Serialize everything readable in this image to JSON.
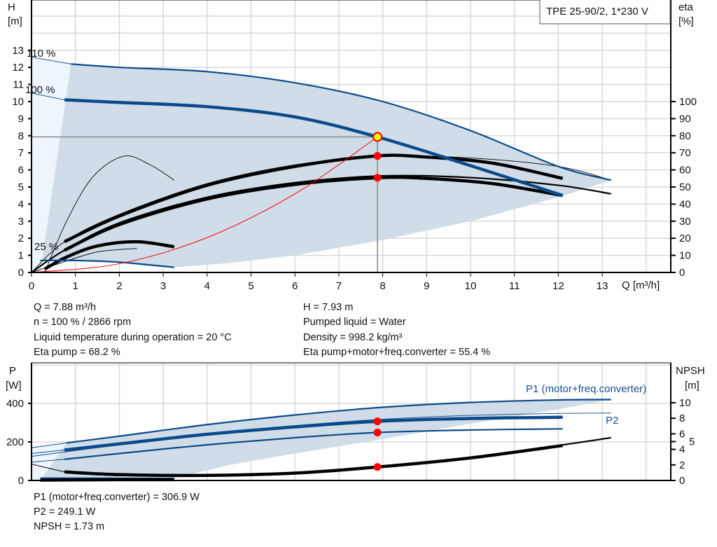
{
  "title_box": "TPE 25-90/2, 1*230 V",
  "chart_data": [
    {
      "type": "line",
      "title": "TPE 25-90/2, 1*230 V",
      "xlabel": "Q [m³/h]",
      "ylabel": [
        "H",
        "[m]"
      ],
      "y2label": [
        "eta",
        "[%]"
      ],
      "xlim": [
        0,
        14.5
      ],
      "ylim": [
        0,
        16
      ],
      "y2lim": [
        0,
        160
      ],
      "xticks": [
        0,
        1,
        2,
        3,
        4,
        5,
        6,
        7,
        8,
        9,
        10,
        11,
        12,
        13
      ],
      "yticks": [
        0,
        1,
        2,
        3,
        4,
        5,
        6,
        7,
        8,
        9,
        10,
        11,
        12,
        13
      ],
      "y2ticks": [
        0,
        10,
        20,
        30,
        40,
        50,
        60,
        70,
        80,
        90,
        100
      ],
      "grid": true,
      "annotations": [
        {
          "text": "110 %",
          "q": 0.0,
          "h": 12.7
        },
        {
          "text": "100 %",
          "q": 0.0,
          "h": 10.6
        },
        {
          "text": "25 %",
          "q": 0.0,
          "h": 1.1
        }
      ],
      "operating_region": {
        "upper": [
          [
            0.9,
            12.2
          ],
          [
            2,
            12.0
          ],
          [
            4,
            11.75
          ],
          [
            6,
            11.1
          ],
          [
            8,
            10.0
          ],
          [
            10,
            8.3
          ],
          [
            12,
            6.2
          ],
          [
            13.2,
            5.4
          ]
        ],
        "lower": [
          [
            13.2,
            5.4
          ],
          [
            12,
            4.4
          ],
          [
            10,
            3.0
          ],
          [
            8,
            1.9
          ],
          [
            6,
            1.0
          ],
          [
            4.5,
            0.55
          ],
          [
            3.25,
            0.3
          ]
        ],
        "min": [
          [
            3.25,
            0.3
          ],
          [
            2,
            0.6
          ],
          [
            1,
            0.7
          ],
          [
            0.2,
            0.7
          ]
        ],
        "left_edge": [
          [
            0.2,
            0.0
          ],
          [
            0.9,
            12.2
          ]
        ]
      },
      "head_curves": [
        {
          "label": "110 %",
          "color": "#0b4a8a",
          "style": "medium",
          "thin_points": [
            [
              0,
              12.6
            ],
            [
              0.9,
              12.2
            ]
          ],
          "points": [
            [
              0.9,
              12.2
            ],
            [
              2,
              12.0
            ],
            [
              4,
              11.75
            ],
            [
              6,
              11.1
            ],
            [
              8,
              10.0
            ],
            [
              10,
              8.3
            ],
            [
              12,
              6.2
            ],
            [
              13.2,
              5.4
            ]
          ]
        },
        {
          "label": "100 %",
          "color": "#0b4a8a",
          "style": "thick",
          "thin_points": [
            [
              0,
              10.5
            ],
            [
              0.75,
              10.1
            ]
          ],
          "points": [
            [
              0.75,
              10.1
            ],
            [
              2,
              9.95
            ],
            [
              4,
              9.7
            ],
            [
              6,
              9.1
            ],
            [
              7.88,
              7.93
            ],
            [
              10,
              6.25
            ],
            [
              12.1,
              4.5
            ]
          ]
        },
        {
          "label": "25 %",
          "color": "#0b4a8a",
          "style": "medium",
          "thin_points": [],
          "points": [
            [
              0.2,
              0.7
            ],
            [
              1,
              0.7
            ],
            [
              2,
              0.6
            ],
            [
              3.25,
              0.3
            ]
          ]
        }
      ],
      "eta_curves": [
        {
          "color": "#000000",
          "style": "thick",
          "points": [
            [
              0.75,
              18
            ],
            [
              2,
              33
            ],
            [
              4,
              51
            ],
            [
              6,
              62
            ],
            [
              7.88,
              68.2
            ],
            [
              9,
              67.5
            ],
            [
              10.5,
              64
            ],
            [
              12.1,
              55
            ]
          ]
        },
        {
          "color": "#000000",
          "style": "thin",
          "points": [
            [
              0,
              0
            ],
            [
              0.75,
              18
            ],
            [
              2,
              34
            ],
            [
              4,
              52
            ],
            [
              6,
              63
            ],
            [
              8,
              68
            ],
            [
              10,
              67
            ],
            [
              12,
              62
            ],
            [
              13.2,
              54
            ]
          ]
        },
        {
          "color": "#000000",
          "style": "thick",
          "points": [
            [
              0.75,
              13
            ],
            [
              2,
              28
            ],
            [
              4,
              43
            ],
            [
              6,
              51.5
            ],
            [
              7.88,
              55.4
            ],
            [
              9,
              55
            ],
            [
              10.5,
              52
            ],
            [
              12.1,
              45
            ]
          ]
        },
        {
          "color": "#000000",
          "style": "medium",
          "points": [
            [
              0,
              0
            ],
            [
              0.75,
              13
            ],
            [
              2,
              29
            ],
            [
              4,
              44
            ],
            [
              6,
              52.5
            ],
            [
              8,
              56.5
            ],
            [
              10,
              55.5
            ],
            [
              12,
              51
            ],
            [
              13.2,
              46
            ]
          ]
        },
        {
          "color": "#000000",
          "style": "thin",
          "points": [
            [
              0.3,
              0
            ],
            [
              0.8,
              30
            ],
            [
              1.4,
              56
            ],
            [
              2.1,
              68
            ],
            [
              2.7,
              63
            ],
            [
              3.25,
              54
            ]
          ]
        },
        {
          "color": "#000000",
          "style": "thick",
          "points": [
            [
              0.3,
              2
            ],
            [
              0.8,
              9
            ],
            [
              1.5,
              15.5
            ],
            [
              2.4,
              18
            ],
            [
              3.25,
              15
            ]
          ]
        },
        {
          "color": "#000000",
          "style": "thin",
          "points": [
            [
              0,
              0
            ],
            [
              0.6,
              5
            ],
            [
              1.5,
              12
            ],
            [
              2.4,
              14
            ]
          ]
        }
      ],
      "system_curve": {
        "color": "#ff0000",
        "points": [
          [
            0,
            0
          ],
          [
            2,
            0.51
          ],
          [
            4,
            2.04
          ],
          [
            6,
            4.6
          ],
          [
            7.88,
            7.93
          ]
        ]
      },
      "duty_point": {
        "q": 7.88,
        "h": 7.93,
        "color": "#ffff00"
      },
      "eta_points": [
        {
          "q": 7.88,
          "eta": 68.2
        },
        {
          "q": 7.88,
          "eta": 55.4
        }
      ],
      "marker_color": "#ff0000"
    },
    {
      "type": "line",
      "ylabel": [
        "P",
        "[W]"
      ],
      "y2label": [
        "NPSH",
        "[m]"
      ],
      "xlim": [
        0,
        14.5
      ],
      "ylim": [
        0,
        600
      ],
      "y2lim": [
        0,
        15
      ],
      "yticks": [
        0,
        200,
        400
      ],
      "y2ticks": [
        0,
        2,
        4,
        5,
        6,
        8,
        10
      ],
      "grid": true,
      "legend": [
        {
          "text": "P1 (motor+freq.converter)",
          "color": "#1a4f8f"
        },
        {
          "text": "P2",
          "color": "#1a4f8f"
        }
      ],
      "region": {
        "upper": [
          [
            0.8,
            195
          ],
          [
            2,
            230
          ],
          [
            4,
            290
          ],
          [
            6,
            340
          ],
          [
            8,
            380
          ],
          [
            10,
            405
          ],
          [
            12,
            418
          ],
          [
            13.2,
            420
          ]
        ],
        "lower": [
          [
            13.2,
            420
          ],
          [
            12,
            370
          ],
          [
            10,
            295
          ],
          [
            8,
            215
          ],
          [
            6,
            140
          ],
          [
            4.5,
            80
          ],
          [
            3.25,
            12
          ]
        ],
        "min": [
          [
            3.25,
            12
          ],
          [
            0.2,
            10
          ]
        ]
      },
      "power_curves": [
        {
          "color": "#0b4a8a",
          "style": "medium",
          "thin_points": [
            [
              0,
              170
            ],
            [
              0.8,
              195
            ]
          ],
          "points": [
            [
              0.8,
              195
            ],
            [
              2,
              230
            ],
            [
              4,
              290
            ],
            [
              6,
              340
            ],
            [
              8,
              380
            ],
            [
              10,
              405
            ],
            [
              12,
              418
            ],
            [
              13.2,
              420
            ]
          ]
        },
        {
          "color": "#0b4a8a",
          "style": "thick",
          "thin_points": [
            [
              0,
              140
            ],
            [
              0.75,
              158
            ]
          ],
          "points": [
            [
              0.75,
              158
            ],
            [
              2,
              190
            ],
            [
              4,
              240
            ],
            [
              6,
              278
            ],
            [
              7.88,
              306.9
            ],
            [
              10,
              322
            ],
            [
              12.1,
              328
            ]
          ]
        },
        {
          "color": "#0b4a8a",
          "style": "thin",
          "thin_points": [],
          "points": [
            [
              0,
              125
            ],
            [
              2,
              185
            ],
            [
              4,
              240
            ],
            [
              6,
              285
            ],
            [
              8,
              318
            ],
            [
              10,
              338
            ],
            [
              12,
              348
            ],
            [
              13.2,
              350
            ]
          ]
        },
        {
          "color": "#0b4a8a",
          "style": "medium",
          "thin_points": [
            [
              0,
              95
            ],
            [
              0.75,
              110
            ]
          ],
          "points": [
            [
              0.75,
              110
            ],
            [
              2,
              140
            ],
            [
              4,
              185
            ],
            [
              6,
              222
            ],
            [
              7.88,
              249.1
            ],
            [
              10,
              262
            ],
            [
              12.1,
              268
            ]
          ]
        },
        {
          "color": "#0b4a8a",
          "style": "medium",
          "thin_points": [],
          "points": [
            [
              0.2,
              12
            ],
            [
              1,
              12
            ],
            [
              2,
              11
            ],
            [
              3.25,
              10
            ]
          ]
        }
      ],
      "npsh_curves": [
        {
          "color": "#000000",
          "style": "thick",
          "thin_points": [
            [
              0,
              2.1
            ],
            [
              0.75,
              1.1
            ]
          ],
          "points": [
            [
              0.75,
              1.1
            ],
            [
              2,
              0.75
            ],
            [
              4,
              0.65
            ],
            [
              6,
              0.95
            ],
            [
              7.88,
              1.73
            ],
            [
              10,
              2.9
            ],
            [
              12.1,
              4.5
            ]
          ]
        },
        {
          "color": "#000000",
          "style": "medium",
          "thin_points": [],
          "points": [
            [
              6,
              0.95
            ],
            [
              7.88,
              1.73
            ],
            [
              10,
              3.0
            ],
            [
              12,
              4.5
            ],
            [
              13.2,
              5.5
            ]
          ]
        },
        {
          "color": "#000000",
          "style": "thick",
          "thin_points": [],
          "points": [
            [
              0.2,
              0.05
            ],
            [
              2,
              0.1
            ],
            [
              3.25,
              0.1
            ]
          ]
        }
      ],
      "operating_points": [
        {
          "q": 7.88,
          "p": 306.9
        },
        {
          "q": 7.88,
          "p": 249.1
        }
      ],
      "npsh_point": {
        "q": 7.88,
        "npsh": 1.73
      },
      "marker_color": "#ff0000"
    }
  ],
  "results_top": {
    "left": [
      "Q = 7.88 m³/h",
      "n = 100 % / 2866 rpm",
      "Liquid temperature during operation = 20 °C",
      "Eta pump = 68.2 %"
    ],
    "right": [
      "H = 7.93 m",
      "Pumped liquid = Water",
      "Density = 998.2 kg/m³",
      "Eta pump+motor+freq.converter = 55.4 %"
    ]
  },
  "results_bottom": [
    "P1 (motor+freq.converter) = 306.9 W",
    "P2 = 249.1 W",
    "NPSH = 1.73 m"
  ]
}
